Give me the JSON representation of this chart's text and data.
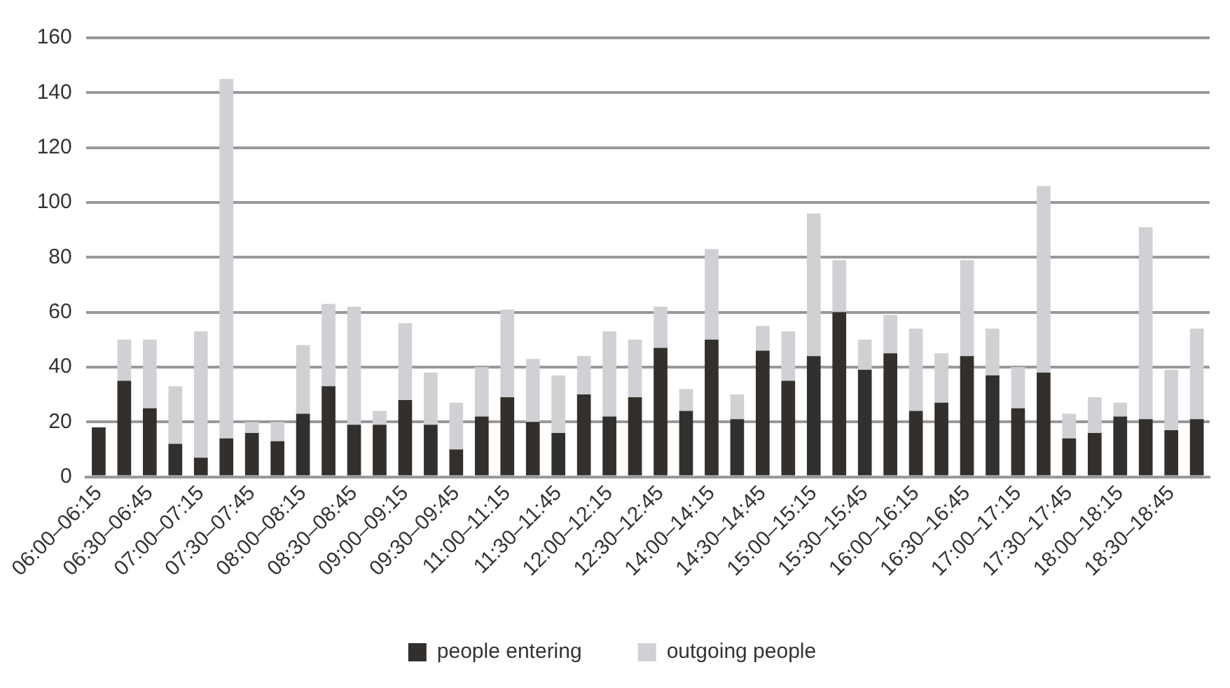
{
  "chart_data": {
    "type": "bar",
    "stacked": true,
    "grid": "y",
    "legend": "bottom",
    "categories": [
      "06:00–06:15",
      null,
      "06:30–06:45",
      null,
      "07:00–07:15",
      null,
      "07:30–07:45",
      null,
      "08:00–08:15",
      null,
      "08:30–08:45",
      null,
      "09:00–09:15",
      null,
      "09:30–09:45",
      null,
      "11:00–11:15",
      null,
      "11:30–11:45",
      null,
      "12:00–12:15",
      null,
      "12:30–12:45",
      null,
      "14:00–14:15",
      null,
      "14:30–14:45",
      null,
      "15:00–15:15",
      null,
      "15:30–15:45",
      null,
      "16:00–16:15",
      null,
      "16:30–16:45",
      null,
      "17:00–17:15",
      null,
      "17:30–17:45",
      null,
      "18:00–18:15",
      null,
      "18:30–18:45",
      null
    ],
    "ylim": [
      0,
      160
    ],
    "yticks": [
      0,
      20,
      40,
      60,
      80,
      100,
      120,
      140,
      160
    ],
    "series": [
      {
        "name": "people entering",
        "color": "#332f2c",
        "values": [
          18,
          35,
          25,
          12,
          7,
          14,
          16,
          13,
          23,
          33,
          19,
          19,
          28,
          19,
          10,
          22,
          29,
          20,
          16,
          30,
          22,
          29,
          47,
          24,
          50,
          21,
          46,
          35,
          44,
          60,
          39,
          45,
          24,
          27,
          44,
          37,
          25,
          38,
          14,
          16,
          22,
          21,
          17,
          21
        ]
      },
      {
        "name": "outgoing people",
        "color": "#d0d1d4",
        "values": [
          0,
          15,
          25,
          21,
          46,
          131,
          4,
          7,
          25,
          30,
          43,
          5,
          28,
          19,
          17,
          18,
          32,
          23,
          21,
          14,
          31,
          21,
          15,
          8,
          33,
          9,
          9,
          18,
          52,
          19,
          11,
          14,
          30,
          18,
          35,
          17,
          15,
          68,
          9,
          13,
          5,
          70,
          22,
          33
        ]
      }
    ]
  }
}
